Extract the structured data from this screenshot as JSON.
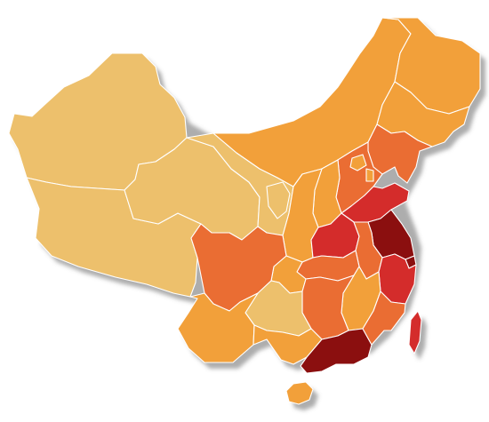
{
  "map": {
    "palette": {
      "level_1": "#EDC06C",
      "level_2": "#F2A03A",
      "level_3": "#EA6D33",
      "level_4": "#D42C2B",
      "level_5": "#8B0F0F",
      "border": "#ffffff",
      "shadow": "#6a6a6a"
    },
    "regions": [
      {
        "id": "xinjiang",
        "level": 1
      },
      {
        "id": "tibet",
        "level": 1
      },
      {
        "id": "qinghai",
        "level": 1
      },
      {
        "id": "gansu",
        "level": 1
      },
      {
        "id": "ningxia",
        "level": 1
      },
      {
        "id": "guizhou",
        "level": 1
      },
      {
        "id": "inner-mongolia",
        "level": 2
      },
      {
        "id": "heilongjiang",
        "level": 2
      },
      {
        "id": "jilin",
        "level": 2
      },
      {
        "id": "shanxi",
        "level": 2
      },
      {
        "id": "shaanxi",
        "level": 2
      },
      {
        "id": "yunnan",
        "level": 2
      },
      {
        "id": "guangxi",
        "level": 2
      },
      {
        "id": "jiangxi",
        "level": 2
      },
      {
        "id": "chongqing",
        "level": 2
      },
      {
        "id": "hainan",
        "level": 2
      },
      {
        "id": "beijing",
        "level": 2
      },
      {
        "id": "tianjin",
        "level": 2
      },
      {
        "id": "liaoning",
        "level": 3
      },
      {
        "id": "hebei",
        "level": 3
      },
      {
        "id": "sichuan",
        "level": 3
      },
      {
        "id": "hunan",
        "level": 3
      },
      {
        "id": "hubei",
        "level": 3
      },
      {
        "id": "anhui",
        "level": 3
      },
      {
        "id": "fujian",
        "level": 3
      },
      {
        "id": "shandong",
        "level": 4
      },
      {
        "id": "henan",
        "level": 4
      },
      {
        "id": "zhejiang",
        "level": 4
      },
      {
        "id": "taiwan",
        "level": 4
      },
      {
        "id": "jiangsu",
        "level": 5
      },
      {
        "id": "shanghai",
        "level": 5
      },
      {
        "id": "guangdong",
        "level": 5
      }
    ]
  }
}
